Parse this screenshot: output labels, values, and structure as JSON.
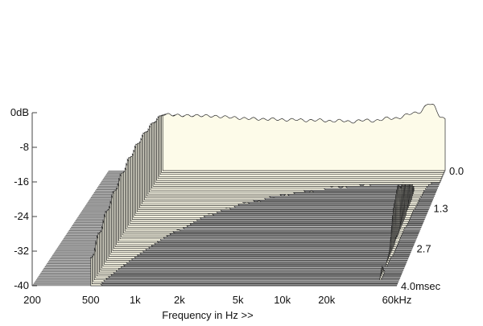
{
  "chart_data": {
    "type": "waterfall",
    "title": "",
    "xlabel": "Frequency in Hz >>",
    "x_scale": "log",
    "xlim": [
      200,
      60000
    ],
    "x_ticks": [
      {
        "value": 200,
        "label": "200"
      },
      {
        "value": 500,
        "label": "500"
      },
      {
        "value": 1000,
        "label": "1k"
      },
      {
        "value": 2000,
        "label": "2k"
      },
      {
        "value": 5000,
        "label": "5k"
      },
      {
        "value": 10000,
        "label": "10k"
      },
      {
        "value": 20000,
        "label": "20k"
      },
      {
        "value": 60000,
        "label": "60kHz"
      }
    ],
    "ylim": [
      -40,
      0
    ],
    "y_ticks": [
      {
        "value": 0,
        "label": "0dB"
      },
      {
        "value": -8,
        "label": "-8"
      },
      {
        "value": -16,
        "label": "-16"
      },
      {
        "value": -24,
        "label": "-24"
      },
      {
        "value": -32,
        "label": "-32"
      },
      {
        "value": -40,
        "label": "-40"
      }
    ],
    "zlim": [
      0,
      4.0
    ],
    "z_ticks": [
      {
        "value": 0.0,
        "label": "0.0"
      },
      {
        "value": 1.3,
        "label": "1.3"
      },
      {
        "value": 2.7,
        "label": "2.7"
      },
      {
        "value": 4.0,
        "label": "4.0msec"
      }
    ],
    "slice_count": 60,
    "colors": {
      "surface": "#fdfbe9",
      "line": "#2a2a2a",
      "floor_dark": "#6a6a6a",
      "floor_light": "#c8c8c8"
    },
    "series": [
      {
        "points": [
          [
            500,
            -1
          ],
          [
            700,
            -2
          ],
          [
            1000,
            -2
          ],
          [
            1500,
            -3
          ],
          [
            2000,
            -4
          ],
          [
            3000,
            -4.5
          ],
          [
            5000,
            -5
          ],
          [
            8000,
            -5.5
          ],
          [
            12000,
            -6
          ],
          [
            20000,
            -5
          ],
          [
            30000,
            -2.5
          ],
          [
            40000,
            1.5
          ],
          [
            45000,
            6
          ],
          [
            50000,
            4
          ],
          [
            55000,
            -2
          ],
          [
            60000,
            -4
          ]
        ]
      }
    ]
  }
}
